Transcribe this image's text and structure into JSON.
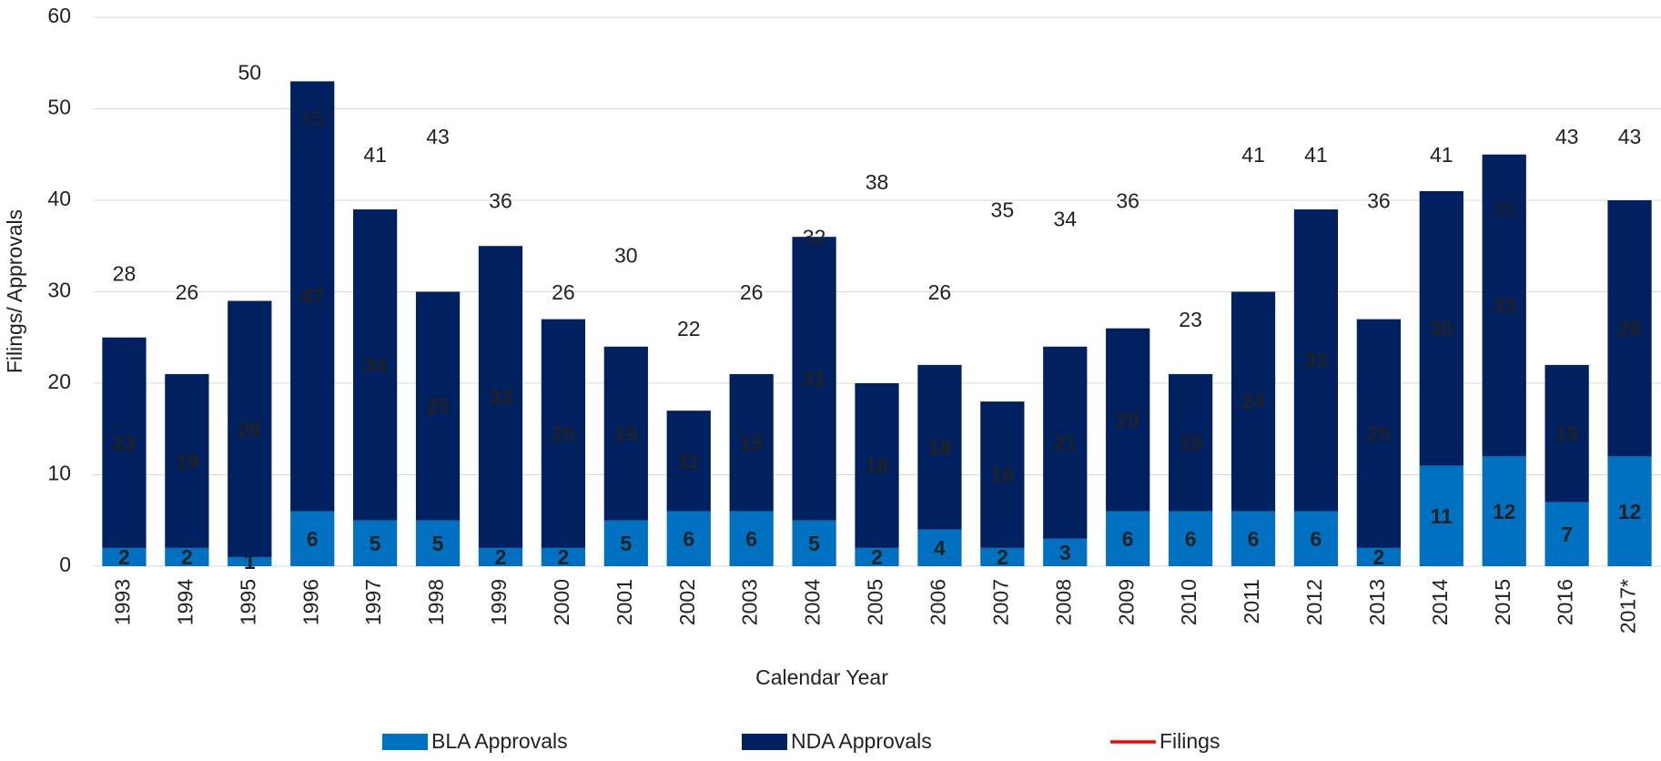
{
  "chart_data": {
    "type": "bar",
    "stacked": true,
    "x_label": "Calendar Year",
    "y_label": "Filings/ Approvals",
    "categories": [
      "1993",
      "1994",
      "1995",
      "1996",
      "1997",
      "1998",
      "1999",
      "2000",
      "2001",
      "2002",
      "2003",
      "2004",
      "2005",
      "2006",
      "2007",
      "2008",
      "2009",
      "2010",
      "2011",
      "2012",
      "2013",
      "2014",
      "2015",
      "2016",
      "2017*"
    ],
    "series": [
      {
        "name": "BLA Approvals",
        "color": "#0070c0",
        "type": "bar",
        "values": [
          2,
          2,
          1,
          6,
          5,
          5,
          2,
          2,
          5,
          6,
          6,
          5,
          2,
          4,
          2,
          3,
          6,
          6,
          6,
          6,
          2,
          11,
          12,
          7,
          12
        ]
      },
      {
        "name": "NDA Approvals",
        "color": "#002060",
        "type": "bar",
        "values": [
          23,
          19,
          28,
          47,
          34,
          25,
          33,
          25,
          19,
          11,
          15,
          31,
          18,
          18,
          16,
          21,
          20,
          15,
          24,
          33,
          25,
          30,
          33,
          15,
          28
        ]
      },
      {
        "name": "Filings",
        "color": "#ff0000",
        "type": "line",
        "values": [
          28,
          26,
          50,
          45,
          41,
          43,
          36,
          26,
          30,
          22,
          26,
          32,
          38,
          26,
          35,
          34,
          36,
          23,
          41,
          41,
          36,
          41,
          35,
          43,
          43
        ]
      }
    ],
    "ylim": [
      0,
      60
    ],
    "yticks": [
      0,
      10,
      20,
      30,
      40,
      50,
      60
    ],
    "grid": true,
    "legend": "bottom"
  }
}
